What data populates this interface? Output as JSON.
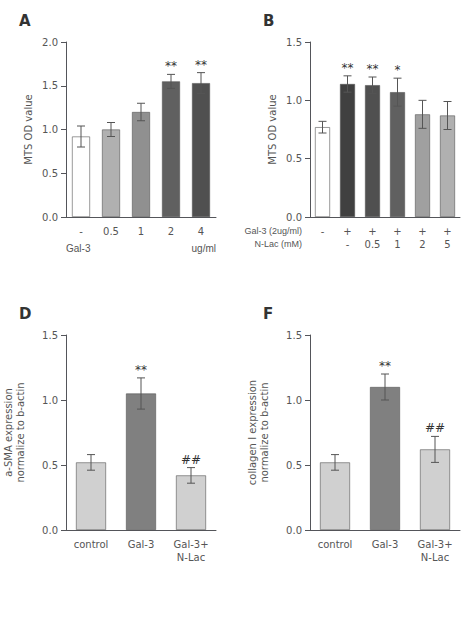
{
  "chart_data": [
    {
      "type": "bar",
      "title": "A",
      "ylabel": "MTS OD value",
      "categories": [
        "-",
        "0.5",
        "1",
        "2",
        "4"
      ],
      "values": [
        0.92,
        1.0,
        1.2,
        1.55,
        1.53
      ],
      "errors": [
        0.12,
        0.08,
        0.1,
        0.08,
        0.12
      ],
      "colors": [
        "#ffffff",
        "#b0b0b0",
        "#909090",
        "#606060",
        "#505050"
      ],
      "ylim": [
        0.0,
        2.0
      ],
      "yticks": [
        {
          "value": 0.0,
          "label": "0.0"
        },
        {
          "value": 0.5,
          "label": "0.5"
        },
        {
          "value": 1.0,
          "label": "1.0"
        },
        {
          "value": 1.5,
          "label": "1.5"
        },
        {
          "value": 2.0,
          "label": "2.0"
        }
      ],
      "grid": false,
      "annotations": [
        {
          "text": "**",
          "x": "2"
        },
        {
          "text": "**",
          "x": "4"
        },
        {
          "text": "Gal-3"
        },
        {
          "text": "ug/ml"
        }
      ]
    },
    {
      "type": "bar",
      "title": "B",
      "ylabel": "MTS OD value",
      "categories": [
        "-",
        "+\n-",
        "+\n0.5",
        "+\n1",
        "+\n2",
        "+\n5"
      ],
      "values": [
        0.77,
        1.14,
        1.13,
        1.07,
        0.88,
        0.87
      ],
      "errors": [
        0.05,
        0.07,
        0.07,
        0.12,
        0.12,
        0.12
      ],
      "colors": [
        "#ffffff",
        "#404040",
        "#505050",
        "#606060",
        "#a0a0a0",
        "#b0b0b0"
      ],
      "ylim": [
        0.0,
        1.5
      ],
      "yticks": [
        {
          "value": 0.0,
          "label": "0.0"
        },
        {
          "value": 0.5,
          "label": "0.5"
        },
        {
          "value": 1.0,
          "label": "1.0"
        },
        {
          "value": 1.5,
          "label": "1.5"
        }
      ],
      "grid": false,
      "annotations": [
        {
          "text": "**",
          "x": "+\n-"
        },
        {
          "text": "**",
          "x": "+\n0.5"
        },
        {
          "text": "*",
          "x": "+\n1"
        },
        {
          "text": "Gal-3 (2ug/ml)"
        },
        {
          "text": "N-Lac (mM)"
        }
      ]
    },
    {
      "type": "bar",
      "title": "D",
      "ylabel": "a-SMA expression\nnormalize to b-actin",
      "categories": [
        "control",
        "Gal-3",
        "Gal-3+\nN-Lac"
      ],
      "values": [
        0.52,
        1.05,
        0.42
      ],
      "errors": [
        0.06,
        0.12,
        0.06
      ],
      "colors": [
        "#d0d0d0",
        "#808080",
        "#d0d0d0"
      ],
      "ylim": [
        0.0,
        1.5
      ],
      "yticks": [
        {
          "value": 0.0,
          "label": "0.0"
        },
        {
          "value": 0.5,
          "label": "0.5"
        },
        {
          "value": 1.0,
          "label": "1.0"
        },
        {
          "value": 1.5,
          "label": "1.5"
        }
      ],
      "grid": false,
      "annotations": [
        {
          "text": "**",
          "x": "Gal-3"
        },
        {
          "text": "##",
          "x": "Gal-3+\nN-Lac"
        }
      ]
    },
    {
      "type": "bar",
      "title": "F",
      "ylabel": "collagen I expression\nnormalize to b-actin",
      "categories": [
        "control",
        "Gal-3",
        "Gal-3+\nN-Lac"
      ],
      "values": [
        0.52,
        1.1,
        0.62
      ],
      "errors": [
        0.06,
        0.1,
        0.1
      ],
      "colors": [
        "#d0d0d0",
        "#808080",
        "#d0d0d0"
      ],
      "ylim": [
        0.0,
        1.5
      ],
      "yticks": [
        {
          "value": 0.0,
          "label": "0.0"
        },
        {
          "value": 0.5,
          "label": "0.5"
        },
        {
          "value": 1.0,
          "label": "1.0"
        },
        {
          "value": 1.5,
          "label": "1.5"
        }
      ],
      "grid": false,
      "annotations": [
        {
          "text": "**",
          "x": "Gal-3"
        },
        {
          "text": "##",
          "x": "Gal-3+\nN-Lac"
        }
      ]
    }
  ]
}
